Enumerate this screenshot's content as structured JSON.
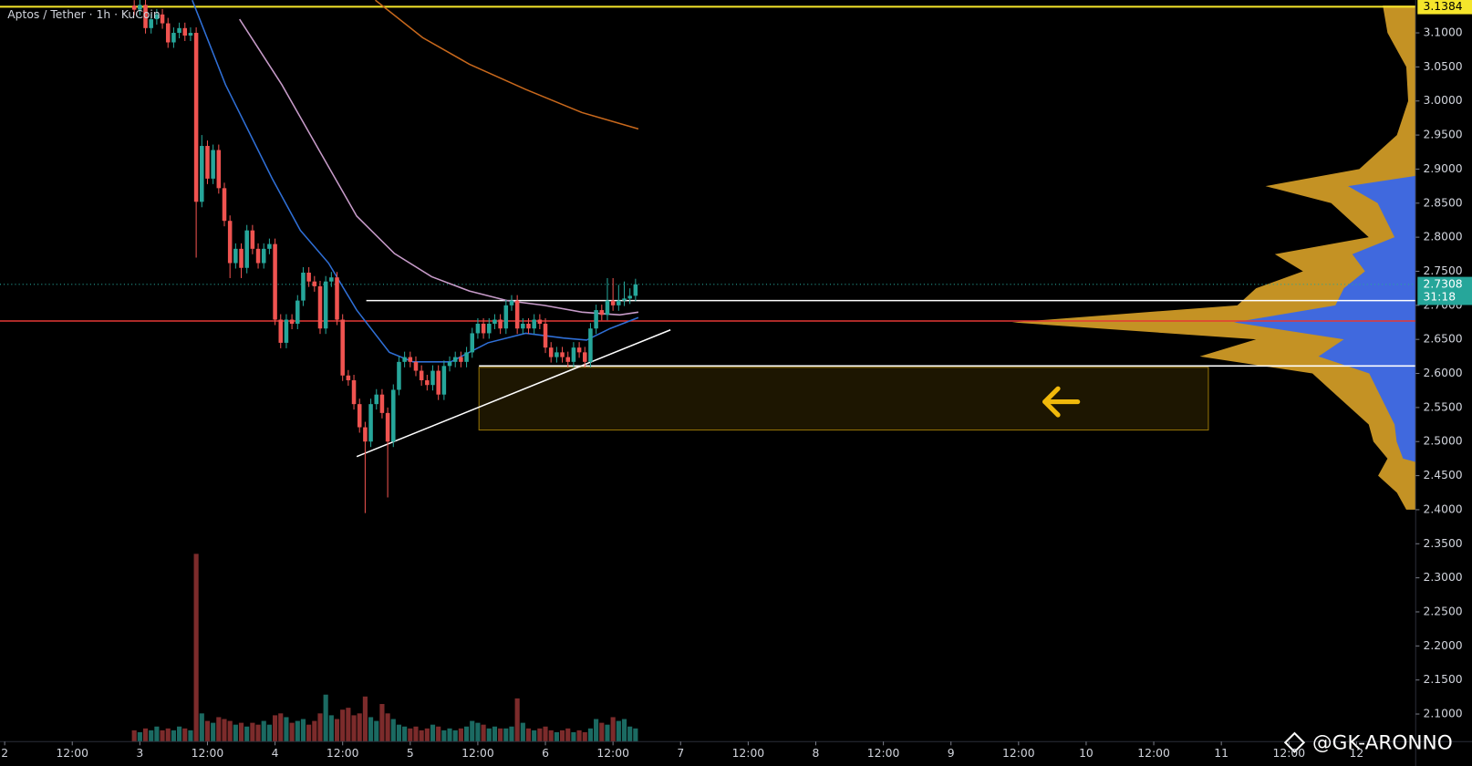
{
  "chart_data": {
    "type": "candlestick",
    "title": "Aptos / Tether · 1h · KuCoin",
    "colors": {
      "up": "#26a69a",
      "down": "#ef5350",
      "volume_up": "#1b6a62",
      "volume_down": "#7c2b2b"
    },
    "x": [
      23,
      24,
      25,
      26,
      27,
      28,
      29,
      30,
      31,
      32,
      33,
      34,
      35,
      36,
      37,
      38,
      39,
      40,
      41,
      42,
      43,
      44,
      45,
      46,
      47,
      48,
      49,
      50,
      51,
      52,
      53,
      54,
      55,
      56,
      57,
      58,
      59,
      60,
      61,
      62,
      63,
      64,
      65,
      66,
      67,
      68,
      69,
      70,
      71,
      72,
      73,
      74,
      75,
      76,
      77,
      78,
      79,
      80,
      81,
      82,
      83,
      84,
      85,
      86,
      87,
      88,
      89,
      90,
      91,
      92,
      93,
      94,
      95,
      96,
      97,
      98,
      99,
      100,
      101,
      102,
      103,
      104,
      105,
      106,
      107,
      108,
      109,
      110,
      111,
      112
    ],
    "open": [
      3.14,
      3.134,
      3.141,
      3.107,
      3.12,
      3.127,
      3.114,
      3.086,
      3.1,
      3.107,
      3.096,
      3.1,
      2.852,
      2.934,
      2.886,
      2.928,
      2.872,
      2.824,
      2.762,
      2.783,
      2.755,
      2.81,
      2.783,
      2.762,
      2.783,
      2.79,
      2.679,
      2.645,
      2.679,
      2.673,
      2.707,
      2.748,
      2.735,
      2.728,
      2.666,
      2.735,
      2.741,
      2.679,
      2.597,
      2.59,
      2.555,
      2.521,
      2.5,
      2.555,
      2.569,
      2.542,
      2.5,
      2.576,
      2.617,
      2.624,
      2.617,
      2.604,
      2.59,
      2.583,
      2.604,
      2.569,
      2.611,
      2.617,
      2.624,
      2.617,
      2.631,
      2.659,
      2.673,
      2.659,
      2.673,
      2.679,
      2.666,
      2.7,
      2.707,
      2.666,
      2.673,
      2.666,
      2.679,
      2.673,
      2.638,
      2.624,
      2.631,
      2.624,
      2.617,
      2.638,
      2.631,
      2.617,
      2.666,
      2.693,
      2.686,
      2.707,
      2.7,
      2.707,
      2.71,
      2.714
    ],
    "high": [
      3.148,
      3.149,
      3.149,
      3.128,
      3.135,
      3.135,
      3.122,
      3.108,
      3.115,
      3.115,
      3.108,
      3.108,
      2.95,
      2.942,
      2.936,
      2.936,
      2.88,
      2.832,
      2.791,
      2.791,
      2.818,
      2.818,
      2.791,
      2.791,
      2.798,
      2.798,
      2.687,
      2.687,
      2.687,
      2.715,
      2.756,
      2.756,
      2.743,
      2.736,
      2.743,
      2.749,
      2.749,
      2.687,
      2.605,
      2.598,
      2.563,
      2.529,
      2.563,
      2.577,
      2.577,
      2.55,
      2.584,
      2.625,
      2.632,
      2.632,
      2.625,
      2.612,
      2.598,
      2.612,
      2.612,
      2.619,
      2.625,
      2.632,
      2.632,
      2.639,
      2.667,
      2.681,
      2.681,
      2.681,
      2.687,
      2.687,
      2.708,
      2.715,
      2.715,
      2.681,
      2.681,
      2.687,
      2.687,
      2.681,
      2.646,
      2.639,
      2.639,
      2.632,
      2.646,
      2.646,
      2.639,
      2.674,
      2.701,
      2.701,
      2.74,
      2.74,
      2.73,
      2.735,
      2.725,
      2.739
    ],
    "low": [
      3.126,
      3.126,
      3.099,
      3.099,
      3.112,
      3.106,
      3.078,
      3.078,
      3.092,
      3.088,
      3.088,
      2.77,
      2.844,
      2.878,
      2.878,
      2.864,
      2.816,
      2.74,
      2.754,
      2.74,
      2.747,
      2.775,
      2.754,
      2.754,
      2.775,
      2.671,
      2.637,
      2.637,
      2.665,
      2.665,
      2.699,
      2.727,
      2.72,
      2.658,
      2.658,
      2.727,
      2.671,
      2.589,
      2.582,
      2.547,
      2.513,
      2.395,
      2.492,
      2.547,
      2.534,
      2.418,
      2.492,
      2.568,
      2.609,
      2.609,
      2.596,
      2.582,
      2.575,
      2.575,
      2.561,
      2.561,
      2.603,
      2.609,
      2.609,
      2.609,
      2.623,
      2.651,
      2.651,
      2.651,
      2.665,
      2.658,
      2.658,
      2.692,
      2.658,
      2.658,
      2.658,
      2.658,
      2.665,
      2.63,
      2.616,
      2.616,
      2.616,
      2.609,
      2.609,
      2.623,
      2.609,
      2.609,
      2.658,
      2.678,
      2.678,
      2.692,
      2.692,
      2.699,
      2.702,
      2.706
    ],
    "close": [
      3.134,
      3.141,
      3.107,
      3.12,
      3.127,
      3.114,
      3.086,
      3.1,
      3.107,
      3.096,
      3.1,
      2.852,
      2.934,
      2.886,
      2.928,
      2.872,
      2.824,
      2.762,
      2.783,
      2.755,
      2.81,
      2.783,
      2.762,
      2.783,
      2.79,
      2.679,
      2.645,
      2.679,
      2.673,
      2.707,
      2.748,
      2.735,
      2.728,
      2.666,
      2.735,
      2.741,
      2.679,
      2.597,
      2.59,
      2.555,
      2.521,
      2.5,
      2.555,
      2.569,
      2.542,
      2.5,
      2.576,
      2.617,
      2.624,
      2.617,
      2.604,
      2.59,
      2.583,
      2.604,
      2.569,
      2.611,
      2.617,
      2.624,
      2.617,
      2.631,
      2.659,
      2.673,
      2.659,
      2.673,
      2.679,
      2.666,
      2.7,
      2.707,
      2.666,
      2.673,
      2.666,
      2.679,
      2.673,
      2.638,
      2.624,
      2.631,
      2.624,
      2.617,
      2.638,
      2.631,
      2.617,
      2.666,
      2.693,
      2.686,
      2.707,
      2.7,
      2.707,
      2.71,
      2.714,
      2.7308
    ],
    "volume": [
      12,
      10,
      14,
      12,
      16,
      12,
      14,
      12,
      16,
      14,
      12,
      200,
      30,
      22,
      20,
      26,
      24,
      22,
      18,
      20,
      16,
      20,
      18,
      22,
      18,
      28,
      30,
      26,
      20,
      22,
      24,
      18,
      22,
      30,
      50,
      28,
      24,
      34,
      36,
      28,
      30,
      48,
      26,
      22,
      40,
      30,
      24,
      18,
      16,
      14,
      16,
      12,
      14,
      18,
      16,
      12,
      14,
      12,
      14,
      16,
      22,
      20,
      18,
      14,
      16,
      14,
      14,
      16,
      46,
      20,
      14,
      12,
      14,
      16,
      12,
      10,
      12,
      14,
      10,
      12,
      10,
      14,
      24,
      20,
      18,
      26,
      22,
      24,
      16,
      14
    ],
    "xlim": [
      -0.83,
      250.5
    ],
    "xticks": [
      {
        "value": 0,
        "label": "2"
      },
      {
        "value": 12,
        "label": "12:00"
      },
      {
        "value": 24,
        "label": "3"
      },
      {
        "value": 36,
        "label": "12:00"
      },
      {
        "value": 48,
        "label": "4"
      },
      {
        "value": 60,
        "label": "12:00"
      },
      {
        "value": 72,
        "label": "5"
      },
      {
        "value": 84,
        "label": "12:00"
      },
      {
        "value": 96,
        "label": "6"
      },
      {
        "value": 108,
        "label": "12:00"
      },
      {
        "value": 120,
        "label": "7"
      },
      {
        "value": 132,
        "label": "12:00"
      },
      {
        "value": 144,
        "label": "8"
      },
      {
        "value": 156,
        "label": "12:00"
      },
      {
        "value": 168,
        "label": "9"
      },
      {
        "value": 180,
        "label": "12:00"
      },
      {
        "value": 192,
        "label": "10"
      },
      {
        "value": 204,
        "label": "12:00"
      },
      {
        "value": 216,
        "label": "11"
      },
      {
        "value": 228,
        "label": "12:00"
      },
      {
        "value": 240,
        "label": "12"
      }
    ],
    "ylim": [
      2.0596,
      3.1482
    ],
    "yticks": [
      {
        "value": 2.1,
        "label": "2.1000"
      },
      {
        "value": 2.15,
        "label": "2.1500"
      },
      {
        "value": 2.2,
        "label": "2.2000"
      },
      {
        "value": 2.25,
        "label": "2.2500"
      },
      {
        "value": 2.3,
        "label": "2.3000"
      },
      {
        "value": 2.35,
        "label": "2.3500"
      },
      {
        "value": 2.4,
        "label": "2.4000"
      },
      {
        "value": 2.45,
        "label": "2.4500"
      },
      {
        "value": 2.5,
        "label": "2.5000"
      },
      {
        "value": 2.55,
        "label": "2.5500"
      },
      {
        "value": 2.6,
        "label": "2.6000"
      },
      {
        "value": 2.65,
        "label": "2.6500"
      },
      {
        "value": 2.7,
        "label": "2.7000"
      },
      {
        "value": 2.75,
        "label": "2.7500"
      },
      {
        "value": 2.8,
        "label": "2.8000"
      },
      {
        "value": 2.85,
        "label": "2.8500"
      },
      {
        "value": 2.9,
        "label": "2.9000"
      },
      {
        "value": 2.95,
        "label": "2.9500"
      },
      {
        "value": 3.0,
        "label": "3.0000"
      },
      {
        "value": 3.05,
        "label": "3.0500"
      },
      {
        "value": 3.1,
        "label": "3.1000"
      }
    ],
    "moving_averages": [
      {
        "color": "#2f6fd6",
        "x": [
          33.3,
          39.2,
          47.5,
          52.5,
          57.5,
          62.5,
          68.3,
          72.5,
          79.2,
          85.8,
          92.5,
          99.2,
          103.3,
          107.5,
          112.5
        ],
        "values": [
          3.148,
          3.024,
          2.886,
          2.81,
          2.762,
          2.693,
          2.631,
          2.617,
          2.617,
          2.645,
          2.659,
          2.652,
          2.649,
          2.666,
          2.682
        ]
      },
      {
        "color": "#c79bc9",
        "x": [
          41.7,
          49.2,
          55.8,
          62.5,
          69.2,
          75.8,
          82.5,
          89.2,
          95.8,
          102.5,
          109.2,
          112.5
        ],
        "values": [
          3.12,
          3.024,
          2.928,
          2.831,
          2.776,
          2.742,
          2.721,
          2.707,
          2.7,
          2.69,
          2.686,
          2.69
        ]
      },
      {
        "color": "#c8681c",
        "x": [
          65.8,
          74.2,
          82.5,
          92.5,
          102.5,
          112.5
        ],
        "values": [
          3.148,
          3.093,
          3.054,
          3.017,
          2.983,
          2.959
        ]
      }
    ],
    "high_level": {
      "price": 3.1384,
      "color": "#f5e52b"
    },
    "red_level": {
      "price": 2.677,
      "color": "#e53935"
    },
    "countdown": "31:18",
    "hlines": [
      {
        "price": 2.707,
        "from": 64.2
      },
      {
        "price": 2.611,
        "from": 84.2
      }
    ],
    "trendline": {
      "x": [
        62.5,
        118.2
      ],
      "values": [
        2.478,
        2.664
      ]
    },
    "zone": {
      "x": [
        84.2,
        213.7
      ],
      "y": [
        2.517,
        2.609
      ],
      "color": "#f0b90b"
    },
    "volume_profile": {
      "color": "#d9a228",
      "value_area": [
        2.47,
        2.89
      ],
      "value_area_color": "#2962ff",
      "prices": [
        3.14,
        3.1,
        3.05,
        3.0,
        2.95,
        2.9,
        2.875,
        2.85,
        2.825,
        2.8,
        2.775,
        2.75,
        2.725,
        2.7,
        2.675,
        2.65,
        2.625,
        2.6,
        2.575,
        2.55,
        2.525,
        2.5,
        2.475,
        2.45,
        2.425,
        2.4
      ],
      "widths": [
        35,
        30,
        10,
        8,
        20,
        60,
        160,
        90,
        70,
        50,
        150,
        120,
        170,
        190,
        430,
        170,
        230,
        110,
        90,
        70,
        50,
        45,
        30,
        40,
        20,
        10
      ]
    },
    "watermark": "@GK-ARONNO"
  }
}
